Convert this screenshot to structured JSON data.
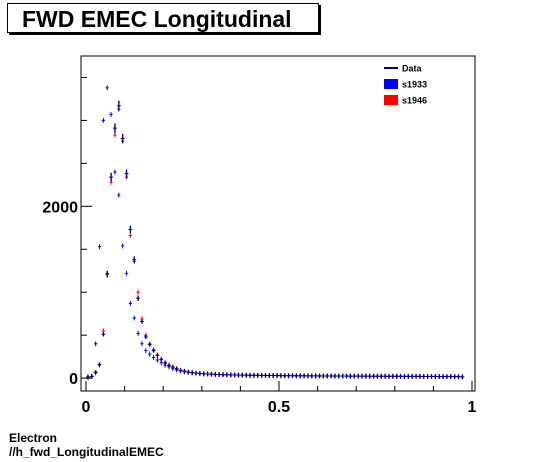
{
  "chart_data": {
    "type": "scatter",
    "title": "FWD EMEC Longitudinal",
    "xlim": [
      0,
      1
    ],
    "ylim": [
      -150,
      3750
    ],
    "xticks": [
      0,
      0.5,
      1
    ],
    "xtick_labels": [
      "0",
      "0.5",
      "1"
    ],
    "yticks": [
      0,
      2000
    ],
    "ytick_labels": [
      "0",
      "2000"
    ],
    "bin_width": 0.01,
    "legend_position": "top-right",
    "legend": [
      {
        "label": "Data",
        "color": "#000080",
        "style": "line"
      },
      {
        "label": "s1933",
        "color": "#0000ff",
        "style": "box"
      },
      {
        "label": "s1946",
        "color": "#ff0000",
        "style": "box"
      }
    ],
    "series": [
      {
        "name": "s1946",
        "color": "#ff0000",
        "x": [
          0.005,
          0.015,
          0.025,
          0.035,
          0.045,
          0.055,
          0.065,
          0.075,
          0.085,
          0.095,
          0.105,
          0.115,
          0.125,
          0.135,
          0.145,
          0.155,
          0.165,
          0.175,
          0.185,
          0.195,
          0.205,
          0.215,
          0.225,
          0.235,
          0.245,
          0.255,
          0.265,
          0.275,
          0.285,
          0.295,
          0.305,
          0.315,
          0.325,
          0.335,
          0.345,
          0.355,
          0.365,
          0.375,
          0.385,
          0.395,
          0.405,
          0.415,
          0.425,
          0.435,
          0.445,
          0.455,
          0.465,
          0.475,
          0.485,
          0.495,
          0.505,
          0.515,
          0.525,
          0.535,
          0.545,
          0.555,
          0.565,
          0.575,
          0.585,
          0.595,
          0.605,
          0.615,
          0.625,
          0.635,
          0.645,
          0.655,
          0.665,
          0.675,
          0.685,
          0.695,
          0.705,
          0.715,
          0.725,
          0.735,
          0.745,
          0.755,
          0.765,
          0.775,
          0.785,
          0.795,
          0.805,
          0.815,
          0.825,
          0.835,
          0.845,
          0.855,
          0.865,
          0.875,
          0.885,
          0.895,
          0.905,
          0.915,
          0.925,
          0.935,
          0.945,
          0.955,
          0.965,
          0.975
        ],
        "y": [
          15,
          20,
          60,
          150,
          550,
          1220,
          2280,
          2830,
          3130,
          2760,
          2340,
          1660,
          1360,
          1000,
          690,
          500,
          400,
          330,
          270,
          220,
          180,
          150,
          130,
          110,
          90,
          80,
          70,
          65,
          60,
          55,
          50,
          48,
          46,
          44,
          42,
          40,
          40,
          38,
          37,
          36,
          35,
          34,
          33,
          33,
          32,
          32,
          31,
          31,
          30,
          30,
          29,
          29,
          28,
          28,
          28,
          27,
          27,
          27,
          26,
          26,
          26,
          26,
          25,
          25,
          25,
          25,
          24,
          24,
          24,
          24,
          24,
          23,
          23,
          23,
          23,
          23,
          22,
          22,
          22,
          22,
          22,
          21,
          21,
          21,
          21,
          21,
          20,
          20,
          20,
          20,
          20,
          19,
          19,
          19,
          19,
          18,
          18,
          15
        ]
      },
      {
        "name": "s1933",
        "color": "#0000ff",
        "x": [
          0.005,
          0.015,
          0.025,
          0.035,
          0.045,
          0.055,
          0.065,
          0.075,
          0.085,
          0.095,
          0.105,
          0.115,
          0.125,
          0.135,
          0.145,
          0.155,
          0.165,
          0.175,
          0.185,
          0.195,
          0.205,
          0.215,
          0.225,
          0.235,
          0.245,
          0.255,
          0.265,
          0.275,
          0.285,
          0.295,
          0.305,
          0.315,
          0.325,
          0.335,
          0.345,
          0.355,
          0.365,
          0.375,
          0.385,
          0.395,
          0.405,
          0.415,
          0.425,
          0.435,
          0.445,
          0.455,
          0.465,
          0.475,
          0.485,
          0.495,
          0.505,
          0.515,
          0.525,
          0.535,
          0.545,
          0.555,
          0.565,
          0.575,
          0.585,
          0.595,
          0.605,
          0.615,
          0.625,
          0.635,
          0.645,
          0.655,
          0.665,
          0.675,
          0.685,
          0.695,
          0.705,
          0.715,
          0.725,
          0.735,
          0.745,
          0.755,
          0.765,
          0.775,
          0.785,
          0.795,
          0.805,
          0.815,
          0.825,
          0.835,
          0.845,
          0.855,
          0.865,
          0.875,
          0.885,
          0.895,
          0.905,
          0.915,
          0.925,
          0.935,
          0.945,
          0.955,
          0.965,
          0.975
        ],
        "y": [
          10,
          20,
          400,
          1530,
          3000,
          3380,
          3070,
          2400,
          2130,
          1540,
          1220,
          870,
          700,
          520,
          400,
          320,
          280,
          240,
          210,
          180,
          150,
          130,
          110,
          95,
          85,
          75,
          68,
          62,
          58,
          54,
          50,
          48,
          46,
          44,
          42,
          40,
          39,
          38,
          37,
          36,
          35,
          34,
          33,
          32,
          32,
          31,
          31,
          30,
          30,
          29,
          29,
          28,
          28,
          28,
          27,
          27,
          27,
          26,
          26,
          26,
          25,
          25,
          25,
          25,
          24,
          24,
          24,
          24,
          23,
          23,
          23,
          23,
          23,
          22,
          22,
          22,
          22,
          21,
          21,
          21,
          21,
          21,
          20,
          20,
          20,
          20,
          20,
          19,
          19,
          19,
          19,
          18,
          18,
          18,
          18,
          17,
          17,
          14
        ]
      },
      {
        "name": "Data",
        "color": "#000080",
        "x": [
          0.005,
          0.015,
          0.025,
          0.035,
          0.045,
          0.055,
          0.065,
          0.075,
          0.085,
          0.095,
          0.105,
          0.115,
          0.125,
          0.135,
          0.145,
          0.155,
          0.165,
          0.175,
          0.185,
          0.195,
          0.205,
          0.215,
          0.225,
          0.235,
          0.245,
          0.255,
          0.265,
          0.275,
          0.285,
          0.295,
          0.305,
          0.315,
          0.325,
          0.335,
          0.345,
          0.355,
          0.365,
          0.375,
          0.385,
          0.395,
          0.405,
          0.415,
          0.425,
          0.435,
          0.445,
          0.455,
          0.465,
          0.475,
          0.485,
          0.495,
          0.505,
          0.515,
          0.525,
          0.535,
          0.545,
          0.555,
          0.565,
          0.575,
          0.585,
          0.595,
          0.605,
          0.615,
          0.625,
          0.635,
          0.645,
          0.655,
          0.665,
          0.675,
          0.685,
          0.695,
          0.705,
          0.715,
          0.725,
          0.735,
          0.745,
          0.755,
          0.765,
          0.775,
          0.785,
          0.795,
          0.805,
          0.815,
          0.825,
          0.835,
          0.845,
          0.855,
          0.865,
          0.875,
          0.885,
          0.895,
          0.905,
          0.915,
          0.925,
          0.935,
          0.945,
          0.955,
          0.965,
          0.975
        ],
        "y": [
          12,
          18,
          70,
          160,
          510,
          1210,
          2340,
          2910,
          3170,
          2790,
          2380,
          1730,
          1380,
          930,
          660,
          480,
          390,
          320,
          265,
          215,
          175,
          148,
          128,
          108,
          90,
          80,
          70,
          64,
          59,
          55,
          50,
          48,
          46,
          44,
          42,
          40,
          39,
          38,
          37,
          36,
          35,
          34,
          33,
          32,
          32,
          31,
          31,
          30,
          30,
          29,
          29,
          28,
          28,
          28,
          27,
          27,
          27,
          26,
          26,
          26,
          25,
          25,
          25,
          25,
          24,
          24,
          24,
          24,
          23,
          23,
          23,
          23,
          23,
          22,
          22,
          22,
          22,
          21,
          21,
          21,
          21,
          21,
          20,
          20,
          20,
          20,
          20,
          19,
          19,
          19,
          19,
          18,
          18,
          18,
          18,
          17,
          17,
          14
        ],
        "err": [
          8,
          8,
          10,
          14,
          25,
          38,
          50,
          55,
          58,
          55,
          50,
          42,
          38,
          32,
          26,
          22,
          20,
          18,
          16,
          15,
          13,
          12,
          11,
          10,
          10,
          9,
          9,
          8,
          8,
          8,
          7,
          7,
          7,
          7,
          7,
          6,
          6,
          6,
          6,
          6,
          6,
          6,
          6,
          6,
          6,
          6,
          6,
          6,
          5,
          5,
          5,
          5,
          5,
          5,
          5,
          5,
          5,
          5,
          5,
          5,
          5,
          5,
          5,
          5,
          5,
          5,
          5,
          5,
          5,
          5,
          5,
          5,
          5,
          5,
          5,
          5,
          5,
          5,
          5,
          5,
          5,
          5,
          5,
          5,
          5,
          5,
          5,
          5,
          5,
          5,
          5,
          5,
          5,
          5,
          5,
          5,
          5,
          4
        ]
      }
    ],
    "footer": [
      "Electron",
      "//h_fwd_LongitudinalEMEC"
    ]
  }
}
